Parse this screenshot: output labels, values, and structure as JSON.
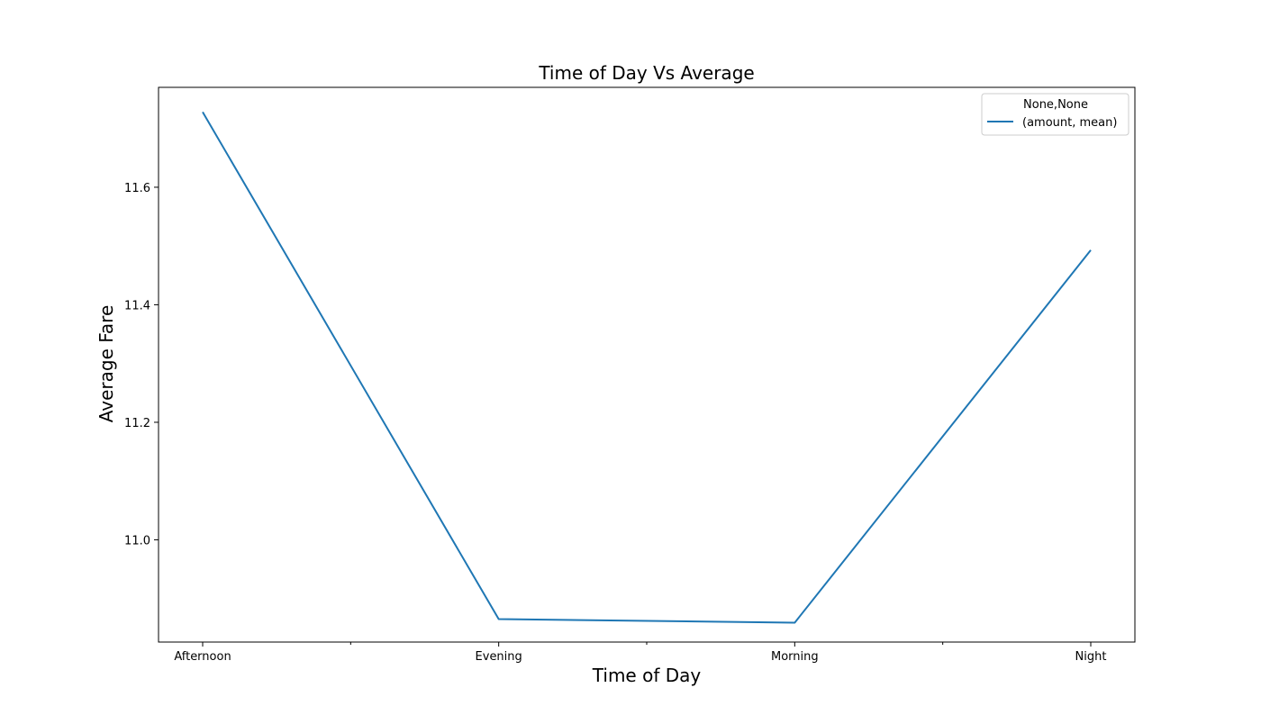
{
  "chart_data": {
    "type": "line",
    "title": "Time of Day Vs Average",
    "xlabel": "Time of Day",
    "ylabel": "Average Fare",
    "categories": [
      "Afternoon",
      "Evening",
      "Morning",
      "Night"
    ],
    "x_minor_ticks": 3,
    "series": [
      {
        "name": "(amount, mean)",
        "values": [
          11.728,
          10.865,
          10.859,
          11.493
        ],
        "color": "#1f77b4"
      }
    ],
    "ylim": [
      10.826,
      11.77
    ],
    "yticks": [
      11.0,
      11.2,
      11.4,
      11.6
    ],
    "ytick_labels": [
      "11.0",
      "11.2",
      "11.4",
      "11.6"
    ],
    "grid": false,
    "legend": {
      "title": "None,None",
      "placement": "top-right"
    }
  }
}
